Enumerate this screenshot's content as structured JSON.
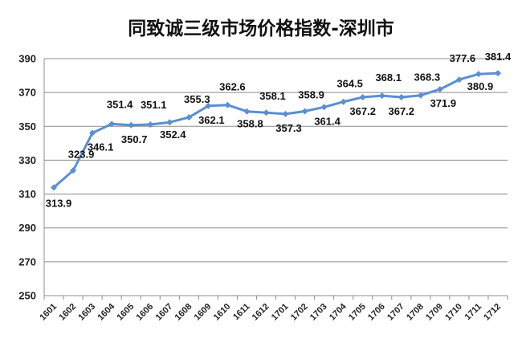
{
  "chart_data": {
    "type": "line",
    "title": "同致诚三级市场价格指数-深圳市",
    "xlabel": "",
    "ylabel": "",
    "ylim": [
      250,
      390
    ],
    "yticks": [
      250,
      270,
      290,
      310,
      330,
      350,
      370,
      390
    ],
    "grid": true,
    "color": "#5b8fd0",
    "categories": [
      "1601",
      "1602",
      "1603",
      "1604",
      "1605",
      "1606",
      "1607",
      "1608",
      "1609",
      "1610",
      "1611",
      "1612",
      "1701",
      "1702",
      "1703",
      "1704",
      "1705",
      "1706",
      "1707",
      "1708",
      "1709",
      "1710",
      "1711",
      "1712"
    ],
    "series": [
      {
        "values": [
          313.9,
          323.9,
          346.1,
          351.4,
          350.7,
          351.1,
          352.4,
          355.3,
          362.1,
          362.6,
          358.8,
          358.1,
          357.3,
          358.9,
          361.4,
          364.5,
          367.2,
          368.1,
          367.2,
          368.3,
          371.9,
          377.6,
          380.9,
          381.4
        ],
        "labels": [
          "313.9",
          "323.9",
          "346.1",
          "351.4",
          "350.7",
          "351.1",
          "352.4",
          "355.3",
          "362.1",
          "362.6",
          "358.8",
          "358.1",
          "357.3",
          "358.9",
          "361.4",
          "364.5",
          "367.2",
          "368.1",
          "367.2",
          "368.3",
          "371.9",
          "377.6",
          "380.9",
          "381.4"
        ]
      }
    ]
  }
}
